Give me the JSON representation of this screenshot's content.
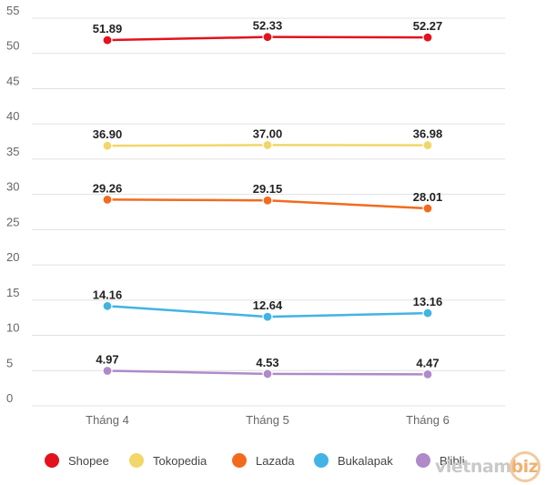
{
  "chart_data": {
    "type": "line",
    "categories": [
      "Tháng 4",
      "Tháng 5",
      "Tháng 6"
    ],
    "ylim": [
      0,
      55
    ],
    "yticks": [
      0,
      5,
      10,
      15,
      20,
      25,
      30,
      35,
      40,
      45,
      50,
      55
    ],
    "grid": true,
    "legend_position": "bottom",
    "series": [
      {
        "name": "Shopee",
        "color": "#e2131c",
        "values": [
          51.89,
          52.33,
          52.27
        ],
        "labels": [
          "51.89",
          "52.33",
          "52.27"
        ]
      },
      {
        "name": "Tokopedia",
        "color": "#f1d769",
        "values": [
          36.9,
          37.0,
          36.98
        ],
        "labels": [
          "36.90",
          "37.00",
          "36.98"
        ]
      },
      {
        "name": "Lazada",
        "color": "#f26b1d",
        "values": [
          29.26,
          29.15,
          28.01
        ],
        "labels": [
          "29.26",
          "29.15",
          "28.01"
        ]
      },
      {
        "name": "Bukalapak",
        "color": "#42b3e5",
        "values": [
          14.16,
          12.64,
          13.16
        ],
        "labels": [
          "14.16",
          "12.64",
          "13.16"
        ]
      },
      {
        "name": "Blibli",
        "color": "#b08ac8",
        "values": [
          4.97,
          4.53,
          4.47
        ],
        "labels": [
          "4.97",
          "4.53",
          "4.47"
        ]
      }
    ]
  },
  "watermark": {
    "text_main": "vietnam",
    "text_accent": "biz"
  }
}
